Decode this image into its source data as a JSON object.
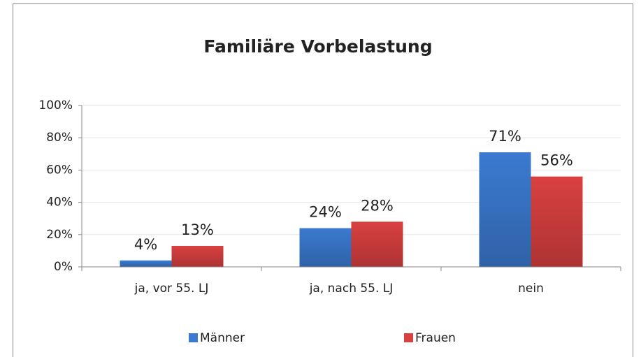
{
  "chart_data": {
    "type": "bar",
    "title": "Familiäre Vorbelastung",
    "categories": [
      "ja, vor 55. LJ",
      "ja, nach 55. LJ",
      "nein"
    ],
    "series": [
      {
        "name": "Männer",
        "color": "#3b7ad0",
        "values": [
          4,
          24,
          71
        ],
        "value_labels": [
          "4%",
          "24%",
          "71%"
        ]
      },
      {
        "name": "Frauen",
        "color": "#d94040",
        "values": [
          13,
          28,
          56
        ],
        "value_labels": [
          "13%",
          "28%",
          "56%"
        ]
      }
    ],
    "ylim": [
      0,
      100
    ],
    "yticks": [
      {
        "value": 0,
        "label": "0%"
      },
      {
        "value": 20,
        "label": "20%"
      },
      {
        "value": 40,
        "label": "40%"
      },
      {
        "value": 60,
        "label": "60%"
      },
      {
        "value": 80,
        "label": "80%"
      },
      {
        "value": 100,
        "label": "100%"
      }
    ],
    "grid": true,
    "legend": "bottom"
  }
}
